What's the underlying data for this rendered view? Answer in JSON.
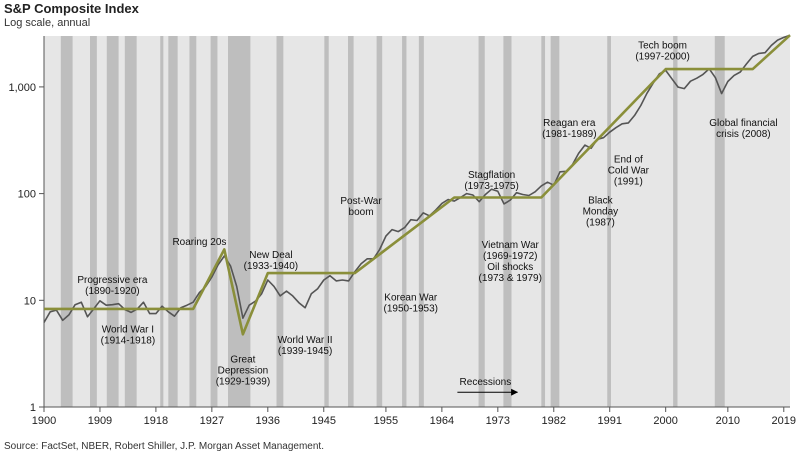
{
  "title": "S&P Composite Index",
  "subtitle": "Log scale, annual",
  "source": "Source: FactSet, NBER, Robert Shiller, J.P. Morgan Asset Management.",
  "chart_data": {
    "type": "line",
    "title": "S&P Composite Index",
    "subtitle": "Log scale, annual",
    "y_scale": "log",
    "xlim": [
      1900,
      2020
    ],
    "ylim": [
      1,
      3000
    ],
    "x_ticks": [
      1900,
      1909,
      1918,
      1927,
      1936,
      1945,
      1955,
      1964,
      1973,
      1982,
      1991,
      2000,
      2010,
      2019
    ],
    "y_ticks": [
      {
        "value": 1,
        "label": "1"
      },
      {
        "value": 10,
        "label": "10"
      },
      {
        "value": 100,
        "label": "100"
      },
      {
        "value": 1000,
        "label": "1,000"
      }
    ],
    "grid": false,
    "colors": {
      "index": "#555555",
      "trend": "#8a8f3a",
      "recession": "#bebebe",
      "plot_bg": "#e6e6e6"
    },
    "series": [
      {
        "key": "index",
        "values": [
          [
            1900,
            6.2
          ],
          [
            1901,
            7.8
          ],
          [
            1902,
            8.1
          ],
          [
            1903,
            6.5
          ],
          [
            1904,
            7.3
          ],
          [
            1905,
            9.1
          ],
          [
            1906,
            9.6
          ],
          [
            1907,
            7.0
          ],
          [
            1908,
            8.3
          ],
          [
            1909,
            9.9
          ],
          [
            1910,
            9.0
          ],
          [
            1911,
            9.1
          ],
          [
            1912,
            9.3
          ],
          [
            1913,
            8.2
          ],
          [
            1914,
            7.7
          ],
          [
            1915,
            8.3
          ],
          [
            1916,
            9.6
          ],
          [
            1917,
            7.5
          ],
          [
            1918,
            7.5
          ],
          [
            1919,
            8.8
          ],
          [
            1920,
            7.8
          ],
          [
            1921,
            7.1
          ],
          [
            1922,
            8.5
          ],
          [
            1923,
            9.0
          ],
          [
            1924,
            9.6
          ],
          [
            1925,
            11.8
          ],
          [
            1926,
            13.4
          ],
          [
            1927,
            16.5
          ],
          [
            1928,
            21.5
          ],
          [
            1929,
            26.0
          ],
          [
            1930,
            21.0
          ],
          [
            1931,
            13.5
          ],
          [
            1932,
            6.8
          ],
          [
            1933,
            9.0
          ],
          [
            1934,
            9.8
          ],
          [
            1935,
            11.5
          ],
          [
            1936,
            15.5
          ],
          [
            1937,
            13.5
          ],
          [
            1938,
            11.0
          ],
          [
            1939,
            12.2
          ],
          [
            1940,
            11.0
          ],
          [
            1941,
            9.5
          ],
          [
            1942,
            8.5
          ],
          [
            1943,
            11.5
          ],
          [
            1944,
            12.8
          ],
          [
            1945,
            15.5
          ],
          [
            1946,
            17.0
          ],
          [
            1947,
            15.2
          ],
          [
            1948,
            15.5
          ],
          [
            1949,
            15.2
          ],
          [
            1950,
            18.5
          ],
          [
            1951,
            22.0
          ],
          [
            1952,
            24.5
          ],
          [
            1953,
            24.5
          ],
          [
            1954,
            30.0
          ],
          [
            1955,
            40.0
          ],
          [
            1956,
            46.0
          ],
          [
            1957,
            44.0
          ],
          [
            1958,
            48.0
          ],
          [
            1959,
            57.0
          ],
          [
            1960,
            56.0
          ],
          [
            1961,
            66.0
          ],
          [
            1962,
            62.0
          ],
          [
            1963,
            70.0
          ],
          [
            1964,
            81.0
          ],
          [
            1965,
            88.0
          ],
          [
            1966,
            85.0
          ],
          [
            1967,
            92.0
          ],
          [
            1968,
            100.0
          ],
          [
            1969,
            97.0
          ],
          [
            1970,
            84.0
          ],
          [
            1971,
            98.0
          ],
          [
            1972,
            110.0
          ],
          [
            1973,
            105.0
          ],
          [
            1974,
            80.0
          ],
          [
            1975,
            87.0
          ],
          [
            1976,
            102.0
          ],
          [
            1977,
            98.0
          ],
          [
            1978,
            96.0
          ],
          [
            1979,
            104.0
          ],
          [
            1980,
            118.0
          ],
          [
            1981,
            128.0
          ],
          [
            1982,
            120.0
          ],
          [
            1983,
            160.0
          ],
          [
            1984,
            162.0
          ],
          [
            1985,
            186.0
          ],
          [
            1986,
            238.0
          ],
          [
            1987,
            285.0
          ],
          [
            1988,
            266.0
          ],
          [
            1989,
            323.0
          ],
          [
            1990,
            334.0
          ],
          [
            1991,
            376.0
          ],
          [
            1992,
            415.0
          ],
          [
            1993,
            451.0
          ],
          [
            1994,
            460.0
          ],
          [
            1995,
            541.0
          ],
          [
            1996,
            670.0
          ],
          [
            1997,
            873.0
          ],
          [
            1998,
            1085.0
          ],
          [
            1999,
            1327.0
          ],
          [
            2000,
            1427.0
          ],
          [
            2001,
            1192.0
          ],
          [
            2002,
            995.0
          ],
          [
            2003,
            965.0
          ],
          [
            2004,
            1131.0
          ],
          [
            2005,
            1207.0
          ],
          [
            2006,
            1310.0
          ],
          [
            2007,
            1477.0
          ],
          [
            2008,
            1220.0
          ],
          [
            2009,
            865.0
          ],
          [
            2010,
            1123.0
          ],
          [
            2011,
            1282.0
          ],
          [
            2012,
            1379.0
          ],
          [
            2013,
            1643.0
          ],
          [
            2014,
            1931.0
          ],
          [
            2015,
            2061.0
          ],
          [
            2016,
            2094.0
          ],
          [
            2017,
            2449.0
          ],
          [
            2018,
            2746.0
          ],
          [
            2019,
            2913.0
          ],
          [
            2020,
            3050.0
          ]
        ]
      },
      {
        "key": "trend",
        "values": [
          [
            1900,
            8.3
          ],
          [
            1924,
            8.3
          ],
          [
            1929,
            30.0
          ],
          [
            1932,
            4.8
          ],
          [
            1936,
            18.0
          ],
          [
            1950,
            18.0
          ],
          [
            1966,
            92.0
          ],
          [
            1980,
            92.0
          ],
          [
            2000,
            1470.0
          ],
          [
            2014,
            1470.0
          ],
          [
            2020,
            3050.0
          ]
        ]
      }
    ],
    "recessions": [
      [
        1902.7,
        1904.6
      ],
      [
        1907.4,
        1908.5
      ],
      [
        1910.1,
        1912.0
      ],
      [
        1913.0,
        1914.9
      ],
      [
        1918.7,
        1919.2
      ],
      [
        1920.0,
        1921.5
      ],
      [
        1923.4,
        1924.5
      ],
      [
        1926.8,
        1927.9
      ],
      [
        1929.6,
        1933.2
      ],
      [
        1937.4,
        1938.5
      ],
      [
        1945.1,
        1945.8
      ],
      [
        1948.9,
        1949.8
      ],
      [
        1953.5,
        1954.4
      ],
      [
        1957.6,
        1958.3
      ],
      [
        1960.3,
        1961.1
      ],
      [
        1969.9,
        1970.9
      ],
      [
        1973.9,
        1975.2
      ],
      [
        1980.0,
        1980.6
      ],
      [
        1981.5,
        1982.9
      ],
      [
        1990.6,
        1991.2
      ],
      [
        2001.2,
        2001.9
      ],
      [
        2007.9,
        2009.5
      ]
    ],
    "annotations": [
      {
        "lines": [
          "Progressive era",
          "(1890-1920)"
        ],
        "x": 1911,
        "y": 14.5
      },
      {
        "lines": [
          "World War I",
          "(1914-1918)"
        ],
        "x": 1913.5,
        "y": 5.0
      },
      {
        "lines": [
          "Roaring 20s"
        ],
        "x": 1925,
        "y": 33.0
      },
      {
        "lines": [
          "Great",
          "Depression",
          "(1929-1939)"
        ],
        "x": 1932,
        "y": 2.6
      },
      {
        "lines": [
          "New Deal",
          "(1933-1940)"
        ],
        "x": 1936.5,
        "y": 25.0
      },
      {
        "lines": [
          "World War II",
          "(1939-1945)"
        ],
        "x": 1942,
        "y": 4.0
      },
      {
        "lines": [
          "Post-War",
          "boom"
        ],
        "x": 1951,
        "y": 80.0
      },
      {
        "lines": [
          "Korean War",
          "(1950-1953)"
        ],
        "x": 1959,
        "y": 10.0
      },
      {
        "lines": [
          "Stagflation",
          "(1973-1975)"
        ],
        "x": 1972,
        "y": 140.0
      },
      {
        "lines": [
          "Vietnam War",
          "(1969-1972)",
          "Oil shocks",
          "(1973 & 1979)"
        ],
        "x": 1975,
        "y": 31.0
      },
      {
        "lines": [
          "Reagan era",
          "(1981-1989)"
        ],
        "x": 1984.5,
        "y": 430.0
      },
      {
        "lines": [
          "Black",
          "Monday",
          "(1987)"
        ],
        "x": 1989.5,
        "y": 81.0
      },
      {
        "lines": [
          "End of",
          "Cold War",
          "(1991)"
        ],
        "x": 1994,
        "y": 195.0
      },
      {
        "lines": [
          "Tech boom",
          "(1997-2000)"
        ],
        "x": 1999.5,
        "y": 2300.0
      },
      {
        "lines": [
          "Global financial",
          "crisis (2008)"
        ],
        "x": 2012.5,
        "y": 430.0
      },
      {
        "lines": [
          "Recessions"
        ],
        "x": 1971,
        "y": 1.6
      }
    ]
  }
}
